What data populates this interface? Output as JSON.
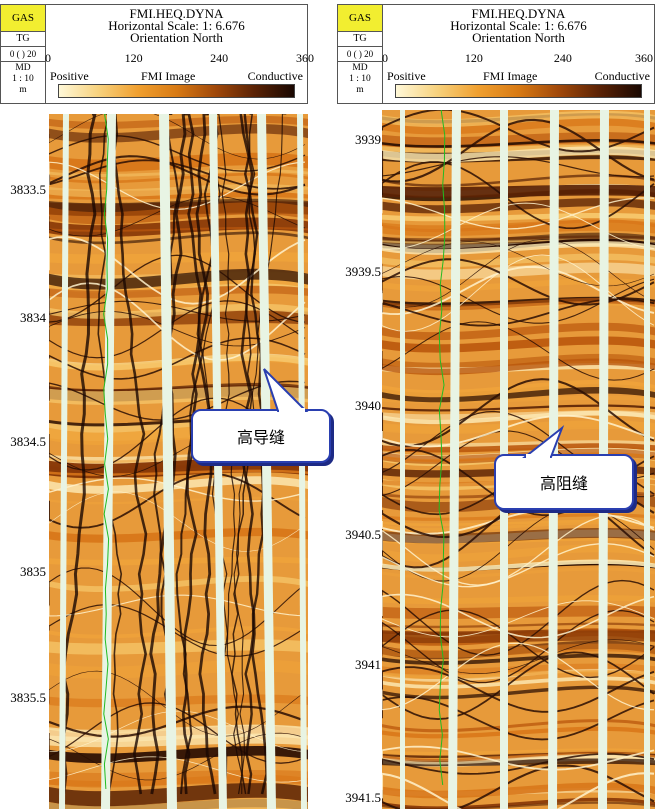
{
  "panels": [
    {
      "gas_label": "GAS",
      "tg_label": "TG",
      "tg_scale": "0 ( ) 20",
      "md_label": "MD",
      "md_scale": "1 : 10",
      "md_unit": "m",
      "title_line1": "FMI.HEQ.DYNA",
      "title_line2": "Horizontal Scale: 1: 6.676",
      "title_line3": "Orientation North",
      "ticks": [
        "0",
        "120",
        "240",
        "360"
      ],
      "legend_positive": "Positive",
      "legend_image": "FMI Image",
      "legend_conductive": "Conductive",
      "depths": [
        {
          "label": "3833.5"
        },
        {
          "label": "3834"
        },
        {
          "label": "3834.5"
        },
        {
          "label": "3835"
        },
        {
          "label": "3835.5"
        }
      ],
      "callout_text": "高导缝"
    },
    {
      "gas_label": "GAS",
      "tg_label": "TG",
      "tg_scale": "0 ( ) 20",
      "md_label": "MD",
      "md_scale": "1 : 10",
      "md_unit": "m",
      "title_line1": "FMI.HEQ.DYNA",
      "title_line2": "Horizontal Scale: 1: 6.676",
      "title_line3": "Orientation North",
      "ticks": [
        "0",
        "120",
        "240",
        "360"
      ],
      "legend_positive": "Positive",
      "legend_image": "FMI Image",
      "legend_conductive": "Conductive",
      "depths": [
        {
          "label": "3939"
        },
        {
          "label": "3939.5"
        },
        {
          "label": "3940"
        },
        {
          "label": "3940.5"
        },
        {
          "label": "3941"
        },
        {
          "label": "3941.5"
        }
      ],
      "callout_text": "高阻缝"
    }
  ],
  "colors": {
    "gas_bg": "#f2ee30",
    "callout_border": "#2a3fb0",
    "pad_gap": "#e8f4e4",
    "trace_green": "#22bb22"
  }
}
